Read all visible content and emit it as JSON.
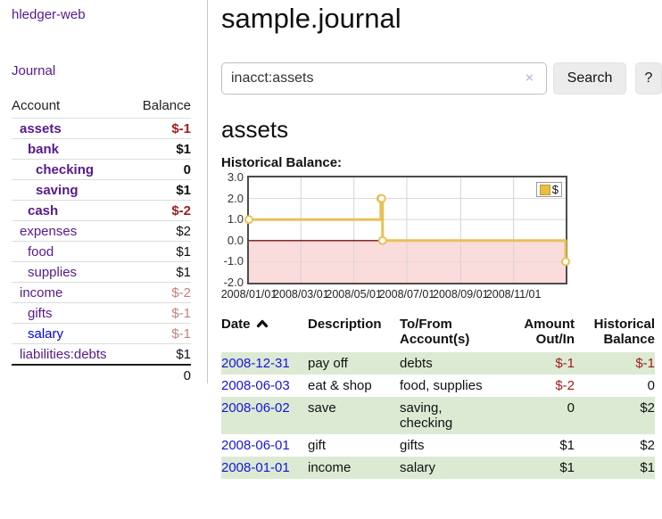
{
  "app": {
    "title": "hledger-web",
    "nav_journal": "Journal"
  },
  "colors": {
    "purple": "#551a8b",
    "blue": "#0000ee",
    "neg_strong": "#9e1c1f",
    "neg_soft": "#c5807c",
    "row_green": "#dcead3",
    "chart_gold": "#e8c155",
    "chart_pink": "#fbdcdc",
    "zero_red": "#7d0b0b"
  },
  "sidebar": {
    "table": {
      "headers": {
        "account": "Account",
        "balance": "Balance"
      },
      "rows": [
        {
          "name": "assets",
          "balance": "$-1",
          "depth": 0,
          "bold": true,
          "balance_class": "neg-strong"
        },
        {
          "name": "bank",
          "balance": "$1",
          "depth": 1,
          "bold": true,
          "balance_class": "pos"
        },
        {
          "name": "checking",
          "balance": "0",
          "depth": 2,
          "bold": true,
          "balance_class": "pos"
        },
        {
          "name": "saving",
          "balance": "$1",
          "depth": 2,
          "bold": true,
          "balance_class": "pos"
        },
        {
          "name": "cash",
          "balance": "$-2",
          "depth": 1,
          "bold": true,
          "balance_class": "neg-strong"
        },
        {
          "name": "expenses",
          "balance": "$2",
          "depth": 0,
          "bold": false,
          "balance_class": "pos"
        },
        {
          "name": "food",
          "balance": "$1",
          "depth": 1,
          "bold": false,
          "balance_class": "pos"
        },
        {
          "name": "supplies",
          "balance": "$1",
          "depth": 1,
          "bold": false,
          "balance_class": "pos"
        },
        {
          "name": "income",
          "balance": "$-2",
          "depth": 0,
          "bold": false,
          "balance_class": "neg-soft"
        },
        {
          "name": "gifts",
          "balance": "$-1",
          "depth": 1,
          "bold": false,
          "balance_class": "neg-soft"
        },
        {
          "name": "salary",
          "balance": "$-1",
          "depth": 1,
          "bold": false,
          "balance_class": "neg-soft",
          "unvisited": true
        },
        {
          "name": "liabilities:debts",
          "balance": "$1",
          "depth": 0,
          "bold": false,
          "balance_class": "pos"
        }
      ],
      "total": "0"
    }
  },
  "header": {
    "title": "sample.journal"
  },
  "search": {
    "value": "inacct:assets",
    "clear_icon": "×",
    "button": "Search",
    "help_button": "?"
  },
  "account_page": {
    "heading": "assets",
    "chart_label": "Historical Balance:"
  },
  "chart_data": {
    "type": "line",
    "step": true,
    "title": "",
    "xlabel": "",
    "ylabel": "",
    "series": [
      {
        "name": "$",
        "points": [
          {
            "date": "2008-01-01",
            "value": 1
          },
          {
            "date": "2008-06-01",
            "value": 2
          },
          {
            "date": "2008-06-02",
            "value": 2
          },
          {
            "date": "2008-06-03",
            "value": 0
          },
          {
            "date": "2008-12-31",
            "value": -1
          }
        ]
      }
    ],
    "x_range": [
      "2008-01-01",
      "2008-12-31"
    ],
    "ylim": [
      -2,
      3
    ],
    "yticks": [
      "3.0",
      "2.0",
      "1.0",
      "0.0",
      "-1.0",
      "-2.0"
    ],
    "xticks": [
      "2008/01/01",
      "2008/03/01",
      "2008/05/01",
      "2008/07/01",
      "2008/09/01",
      "2008/11/01"
    ],
    "legend": {
      "label": "$",
      "position": "top-right"
    },
    "grid": true,
    "negative_region_shaded": true
  },
  "register": {
    "headers": {
      "date": "Date",
      "description": "Description",
      "account": "To/From Account(s)",
      "amount": "Amount Out/In",
      "balance": "Historical Balance"
    },
    "rows": [
      {
        "date": "2008-12-31",
        "description": "pay off",
        "accounts": "debts",
        "amount": "$-1",
        "balance": "$-1"
      },
      {
        "date": "2008-06-03",
        "description": "eat & shop",
        "accounts": "food, supplies",
        "amount": "$-2",
        "balance": "0"
      },
      {
        "date": "2008-06-02",
        "description": "save",
        "accounts": "saving,\nchecking",
        "amount": "0",
        "balance": "$2"
      },
      {
        "date": "2008-06-01",
        "description": "gift",
        "accounts": "gifts",
        "amount": "$1",
        "balance": "$2"
      },
      {
        "date": "2008-01-01",
        "description": "income",
        "accounts": "salary",
        "amount": "$1",
        "balance": "$1"
      }
    ]
  }
}
